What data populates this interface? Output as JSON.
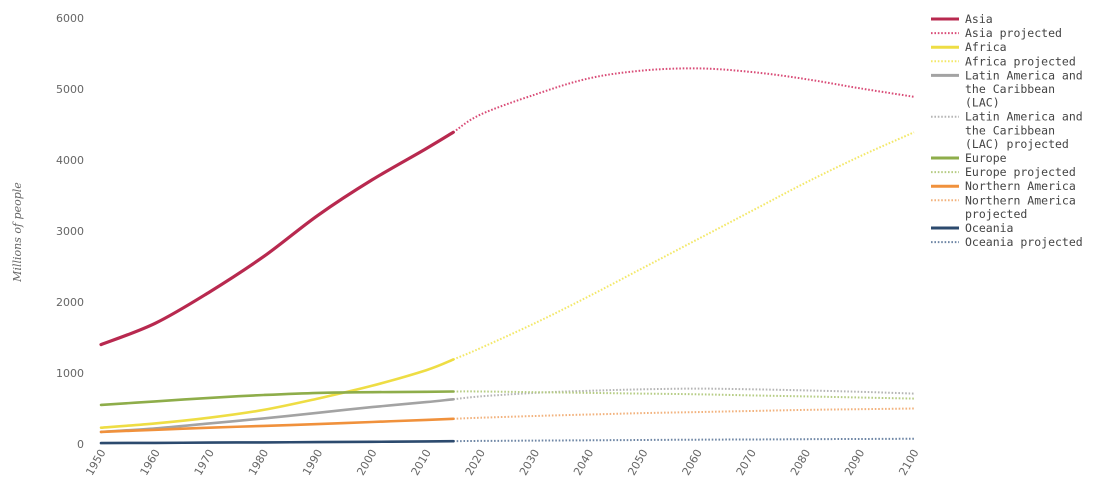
{
  "chart_data": {
    "type": "line",
    "title": "",
    "ylabel": "Millions of people",
    "xlabel": "",
    "xlim": [
      1950,
      2100
    ],
    "ylim": [
      0,
      6000
    ],
    "yticks": [
      0,
      1000,
      2000,
      3000,
      4000,
      5000,
      6000
    ],
    "yticklabels": [
      "0",
      "1000",
      "2000",
      "3000",
      "4000",
      "5000",
      "6000"
    ],
    "xticks": [
      1950,
      1960,
      1970,
      1980,
      1990,
      2000,
      2010,
      2020,
      2030,
      2040,
      2050,
      2060,
      2070,
      2080,
      2090,
      2100
    ],
    "xticklabels": [
      "1950",
      "1960",
      "1970",
      "1980",
      "1990",
      "2000",
      "2010",
      "2020",
      "2030",
      "2040",
      "2050",
      "2060",
      "2070",
      "2080",
      "2090",
      "2100"
    ],
    "grid": false,
    "legend_position": "right",
    "series": [
      {
        "name": "Asia",
        "style": "solid",
        "color": "#b8294f",
        "x": [
          1950,
          1960,
          1970,
          1980,
          1990,
          2000,
          2010,
          2015
        ],
        "y": [
          1400,
          1700,
          2140,
          2640,
          3220,
          3720,
          4160,
          4390
        ]
      },
      {
        "name": "Asia projected",
        "style": "dotted",
        "color": "#d94c77",
        "x": [
          2015,
          2020,
          2030,
          2040,
          2050,
          2060,
          2070,
          2080,
          2090,
          2100
        ],
        "y": [
          4390,
          4640,
          4920,
          5150,
          5260,
          5290,
          5240,
          5140,
          5010,
          4890
        ]
      },
      {
        "name": "Africa",
        "style": "solid",
        "color": "#eedd44",
        "x": [
          1950,
          1960,
          1970,
          1980,
          1990,
          2000,
          2010,
          2015
        ],
        "y": [
          230,
          290,
          370,
          480,
          640,
          820,
          1040,
          1190
        ]
      },
      {
        "name": "Africa projected",
        "style": "dotted",
        "color": "#f3e868",
        "x": [
          2015,
          2020,
          2030,
          2040,
          2050,
          2060,
          2070,
          2080,
          2090,
          2100
        ],
        "y": [
          1190,
          1350,
          1700,
          2080,
          2480,
          2880,
          3280,
          3680,
          4050,
          4390
        ]
      },
      {
        "name": "Latin America and the Caribbean (LAC)",
        "style": "solid",
        "color": "#a3a3a3",
        "x": [
          1950,
          1960,
          1970,
          1980,
          1990,
          2000,
          2010,
          2015
        ],
        "y": [
          170,
          220,
          290,
          360,
          440,
          520,
          590,
          630
        ]
      },
      {
        "name": "Latin America and the Caribbean (LAC) projected",
        "style": "dotted",
        "color": "#b5b5b5",
        "x": [
          2015,
          2020,
          2030,
          2040,
          2050,
          2060,
          2070,
          2080,
          2090,
          2100
        ],
        "y": [
          630,
          670,
          720,
          750,
          770,
          780,
          770,
          755,
          735,
          710
        ]
      },
      {
        "name": "Europe",
        "style": "solid",
        "color": "#8ead4a",
        "x": [
          1950,
          1960,
          1970,
          1980,
          1990,
          2000,
          2010,
          2015
        ],
        "y": [
          550,
          600,
          650,
          690,
          720,
          730,
          735,
          740
        ]
      },
      {
        "name": "Europe projected",
        "style": "dotted",
        "color": "#b5cc83",
        "x": [
          2015,
          2020,
          2030,
          2040,
          2050,
          2060,
          2070,
          2080,
          2090,
          2100
        ],
        "y": [
          740,
          740,
          730,
          720,
          710,
          700,
          685,
          670,
          655,
          640
        ]
      },
      {
        "name": "Northern America",
        "style": "solid",
        "color": "#f0913c",
        "x": [
          1950,
          1960,
          1970,
          1980,
          1990,
          2000,
          2010,
          2015
        ],
        "y": [
          170,
          200,
          230,
          255,
          280,
          310,
          340,
          355
        ]
      },
      {
        "name": "Northern America projected",
        "style": "dotted",
        "color": "#f2b27d",
        "x": [
          2015,
          2020,
          2030,
          2040,
          2050,
          2060,
          2070,
          2080,
          2090,
          2100
        ],
        "y": [
          355,
          370,
          395,
          415,
          435,
          450,
          465,
          480,
          490,
          500
        ]
      },
      {
        "name": "Oceania",
        "style": "solid",
        "color": "#2c4a6e",
        "x": [
          1950,
          1960,
          1970,
          1980,
          1990,
          2000,
          2010,
          2015
        ],
        "y": [
          13,
          16,
          20,
          23,
          27,
          31,
          36,
          40
        ]
      },
      {
        "name": "Oceania projected",
        "style": "dotted",
        "color": "#6e86a5",
        "x": [
          2015,
          2020,
          2030,
          2040,
          2050,
          2060,
          2070,
          2080,
          2090,
          2100
        ],
        "y": [
          40,
          43,
          48,
          52,
          57,
          61,
          64,
          68,
          71,
          74
        ]
      }
    ]
  }
}
